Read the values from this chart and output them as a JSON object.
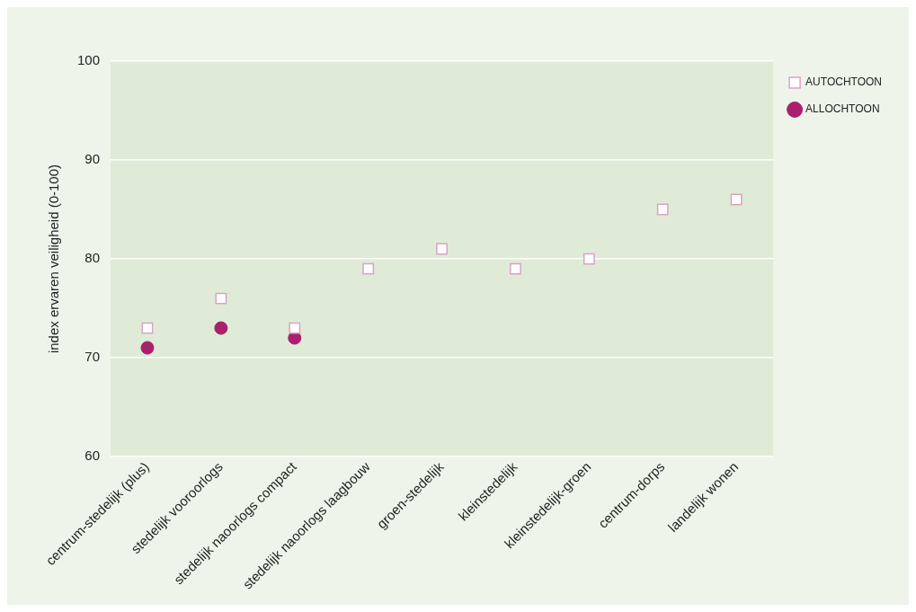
{
  "chart_data": {
    "type": "scatter",
    "ylabel": "index ervaren veiligheid (0-100)",
    "categories": [
      "centrum-stedelijk (plus)",
      "stedelijk vooroorlogs",
      "stedelijk naoorlogs compact",
      "stedelijk naoorlogs laagbouw",
      "groen-stedelijk",
      "kleinstedelijk",
      "kleinstedelijk-groen",
      "centrum-dorps",
      "landelijk wonen"
    ],
    "series": [
      {
        "name": "AUTOCHTOON",
        "color": "#d9a3c4",
        "marker": "square",
        "values": [
          73,
          76,
          73,
          79,
          81,
          79,
          80,
          85,
          86
        ]
      },
      {
        "name": "ALLOCHTOON",
        "color": "#a8206e",
        "marker": "circle",
        "values": [
          71,
          73,
          72,
          null,
          null,
          null,
          null,
          null,
          null
        ]
      }
    ],
    "ylim": [
      60,
      100
    ],
    "yticks": [
      60,
      70,
      80,
      90,
      100
    ],
    "grid": "y",
    "legend": "top right"
  }
}
